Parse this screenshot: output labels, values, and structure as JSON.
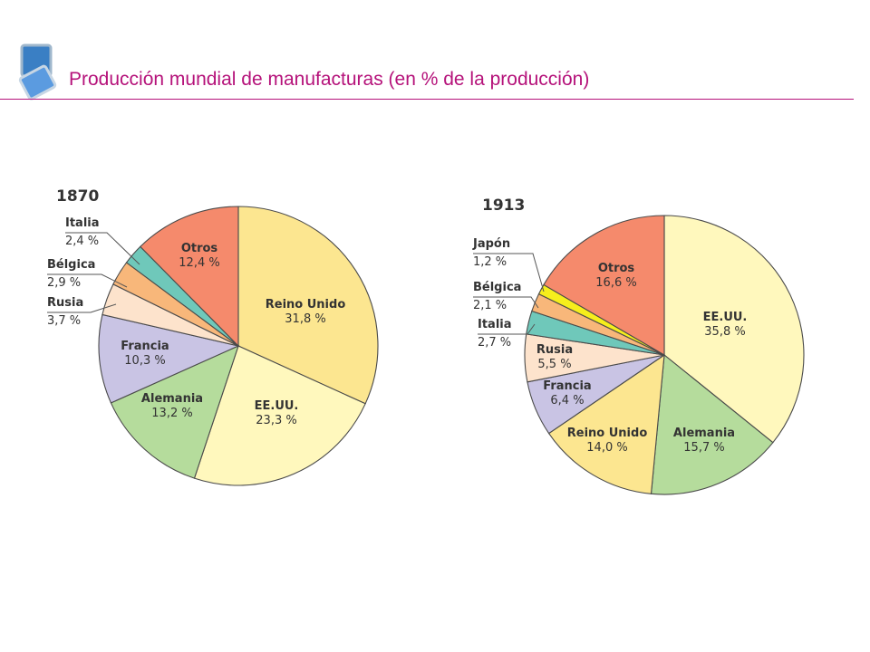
{
  "title": "Producción mundial de manufacturas (en % de la producción)",
  "chart_data": [
    {
      "type": "pie",
      "title": "1870",
      "slices": [
        {
          "name": "Reino Unido",
          "label": "31,8 %",
          "value": 31.8,
          "color": "#fce690"
        },
        {
          "name": "EE.UU.",
          "label": "23,3 %",
          "value": 23.3,
          "color": "#fff8bd"
        },
        {
          "name": "Alemania",
          "label": "13,2 %",
          "value": 13.2,
          "color": "#b5dc9c"
        },
        {
          "name": "Francia",
          "label": "10,3 %",
          "value": 10.3,
          "color": "#c9c4e4"
        },
        {
          "name": "Rusia",
          "label": "3,7 %",
          "value": 3.7,
          "color": "#fde3cc"
        },
        {
          "name": "Bélgica",
          "label": "2,9 %",
          "value": 2.9,
          "color": "#f8b77a"
        },
        {
          "name": "Italia",
          "label": "2,4 %",
          "value": 2.4,
          "color": "#6fc8ba"
        },
        {
          "name": "Otros",
          "label": "12,4 %",
          "value": 12.4,
          "color": "#f58a6c"
        }
      ]
    },
    {
      "type": "pie",
      "title": "1913",
      "slices": [
        {
          "name": "EE.UU.",
          "label": "35,8 %",
          "value": 35.8,
          "color": "#fff8bd"
        },
        {
          "name": "Alemania",
          "label": "15,7 %",
          "value": 15.7,
          "color": "#b5dc9c"
        },
        {
          "name": "Reino Unido",
          "label": "14,0 %",
          "value": 14.0,
          "color": "#fce690"
        },
        {
          "name": "Francia",
          "label": "6,4 %",
          "value": 6.4,
          "color": "#c9c4e4"
        },
        {
          "name": "Rusia",
          "label": "5,5 %",
          "value": 5.5,
          "color": "#fde3cc"
        },
        {
          "name": "Italia",
          "label": "2,7 %",
          "value": 2.7,
          "color": "#6fc8ba"
        },
        {
          "name": "Bélgica",
          "label": "2,1 %",
          "value": 2.1,
          "color": "#f8b77a"
        },
        {
          "name": "Japón",
          "label": "1,2 %",
          "value": 1.2,
          "color": "#f6ee1c"
        },
        {
          "name": "Otros",
          "label": "16,6 %",
          "value": 16.6,
          "color": "#f58a6c"
        }
      ]
    }
  ]
}
